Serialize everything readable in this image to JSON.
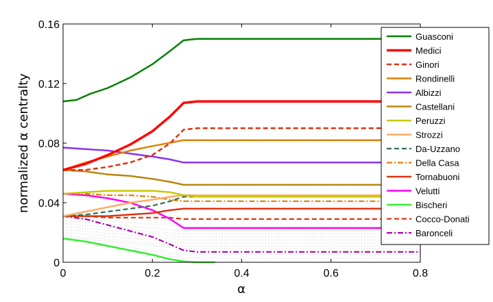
{
  "chart_data": {
    "type": "line",
    "xlabel": "α",
    "ylabel": "normalized α centralty",
    "xlim": [
      0,
      0.8
    ],
    "ylim": [
      0,
      0.16
    ],
    "x_ticks": [
      "0",
      "0.2",
      "0.4",
      "0.6",
      "0.8"
    ],
    "y_ticks": [
      "0",
      "0.04",
      "0.08",
      "0.12",
      "0.16"
    ],
    "legend_position": "top-right",
    "grid": false,
    "series": [
      {
        "name": "Guasconi",
        "color": "#008000",
        "dash": "solid",
        "width": 2.5,
        "points": [
          [
            0,
            0.108
          ],
          [
            0.03,
            0.109
          ],
          [
            0.06,
            0.113
          ],
          [
            0.1,
            0.117
          ],
          [
            0.15,
            0.124
          ],
          [
            0.2,
            0.133
          ],
          [
            0.24,
            0.142
          ],
          [
            0.27,
            0.149
          ],
          [
            0.3,
            0.15
          ],
          [
            0.8,
            0.15
          ]
        ]
      },
      {
        "name": "Medici",
        "color": "#ff0000",
        "dash": "solid",
        "width": 3.5,
        "points": [
          [
            0,
            0.062
          ],
          [
            0.05,
            0.066
          ],
          [
            0.1,
            0.072
          ],
          [
            0.15,
            0.079
          ],
          [
            0.2,
            0.088
          ],
          [
            0.24,
            0.098
          ],
          [
            0.27,
            0.107
          ],
          [
            0.3,
            0.108
          ],
          [
            0.8,
            0.108
          ]
        ]
      },
      {
        "name": "Ginori",
        "color": "#dd3311",
        "dash": "dashed",
        "width": 2.5,
        "points": [
          [
            0,
            0.062
          ],
          [
            0.05,
            0.062
          ],
          [
            0.1,
            0.064
          ],
          [
            0.15,
            0.067
          ],
          [
            0.2,
            0.072
          ],
          [
            0.24,
            0.08
          ],
          [
            0.27,
            0.089
          ],
          [
            0.3,
            0.09
          ],
          [
            0.8,
            0.09
          ]
        ]
      },
      {
        "name": "Rondinelli",
        "color": "#e08000",
        "dash": "solid",
        "width": 2.5,
        "points": [
          [
            0,
            0.062
          ],
          [
            0.05,
            0.067
          ],
          [
            0.1,
            0.071
          ],
          [
            0.15,
            0.075
          ],
          [
            0.2,
            0.078
          ],
          [
            0.27,
            0.082
          ],
          [
            0.8,
            0.082
          ]
        ]
      },
      {
        "name": "Albizzi",
        "color": "#8833ee",
        "dash": "solid",
        "width": 2.5,
        "points": [
          [
            0,
            0.077
          ],
          [
            0.05,
            0.076
          ],
          [
            0.1,
            0.075
          ],
          [
            0.15,
            0.073
          ],
          [
            0.2,
            0.071
          ],
          [
            0.24,
            0.069
          ],
          [
            0.27,
            0.067
          ],
          [
            0.8,
            0.067
          ]
        ]
      },
      {
        "name": "Castellani",
        "color": "#b8860b",
        "dash": "solid",
        "width": 2.5,
        "points": [
          [
            0,
            0.062
          ],
          [
            0.05,
            0.061
          ],
          [
            0.1,
            0.059
          ],
          [
            0.15,
            0.058
          ],
          [
            0.2,
            0.056
          ],
          [
            0.24,
            0.054
          ],
          [
            0.27,
            0.052
          ],
          [
            0.8,
            0.052
          ]
        ]
      },
      {
        "name": "Peruzzi",
        "color": "#c8c800",
        "dash": "solid",
        "width": 2.5,
        "points": [
          [
            0,
            0.046
          ],
          [
            0.05,
            0.047
          ],
          [
            0.1,
            0.048
          ],
          [
            0.15,
            0.048
          ],
          [
            0.2,
            0.048
          ],
          [
            0.24,
            0.047
          ],
          [
            0.27,
            0.045
          ],
          [
            0.3,
            0.044
          ],
          [
            0.8,
            0.044
          ]
        ]
      },
      {
        "name": "Strozzi",
        "color": "#ffaa66",
        "dash": "solid",
        "width": 2.5,
        "points": [
          [
            0,
            0.031
          ],
          [
            0.05,
            0.034
          ],
          [
            0.1,
            0.037
          ],
          [
            0.15,
            0.04
          ],
          [
            0.2,
            0.042
          ],
          [
            0.24,
            0.044
          ],
          [
            0.27,
            0.045
          ],
          [
            0.8,
            0.045
          ]
        ]
      },
      {
        "name": "Da-Uzzano",
        "color": "#2f6f4f",
        "dash": "dashed",
        "width": 2.2,
        "points": [
          [
            0,
            0.031
          ],
          [
            0.05,
            0.032
          ],
          [
            0.1,
            0.034
          ],
          [
            0.15,
            0.036
          ],
          [
            0.2,
            0.038
          ],
          [
            0.24,
            0.041
          ],
          [
            0.27,
            0.044
          ],
          [
            0.8,
            0.044
          ]
        ]
      },
      {
        "name": "Della Casa",
        "color": "#e08000",
        "dash": "dashdot",
        "width": 2.2,
        "points": [
          [
            0,
            0.046
          ],
          [
            0.05,
            0.046
          ],
          [
            0.1,
            0.045
          ],
          [
            0.15,
            0.045
          ],
          [
            0.2,
            0.044
          ],
          [
            0.24,
            0.042
          ],
          [
            0.27,
            0.041
          ],
          [
            0.8,
            0.041
          ]
        ]
      },
      {
        "name": "Tornabuoni",
        "color": "#dd3311",
        "dash": "solid",
        "width": 2.5,
        "points": [
          [
            0,
            0.031
          ],
          [
            0.05,
            0.031
          ],
          [
            0.1,
            0.031
          ],
          [
            0.15,
            0.032
          ],
          [
            0.2,
            0.033
          ],
          [
            0.24,
            0.035
          ],
          [
            0.27,
            0.036
          ],
          [
            0.8,
            0.036
          ]
        ]
      },
      {
        "name": "Velutti",
        "color": "#ff00ff",
        "dash": "solid",
        "width": 2.5,
        "points": [
          [
            0,
            0.046
          ],
          [
            0.05,
            0.045
          ],
          [
            0.1,
            0.043
          ],
          [
            0.15,
            0.04
          ],
          [
            0.2,
            0.035
          ],
          [
            0.24,
            0.029
          ],
          [
            0.27,
            0.023
          ],
          [
            0.8,
            0.023
          ]
        ]
      },
      {
        "name": "Bischeri",
        "color": "#33ee33",
        "dash": "solid",
        "width": 2.5,
        "points": [
          [
            0,
            0.016
          ],
          [
            0.05,
            0.014
          ],
          [
            0.1,
            0.011
          ],
          [
            0.15,
            0.008
          ],
          [
            0.2,
            0.005
          ],
          [
            0.24,
            0.002
          ],
          [
            0.27,
            0.0005
          ],
          [
            0.3,
            0.0
          ],
          [
            0.34,
            0.0
          ]
        ]
      },
      {
        "name": "Cocco-Donati",
        "color": "#dd3311",
        "dash": "dashed",
        "width": 2.2,
        "points": [
          [
            0,
            0.031
          ],
          [
            0.05,
            0.031
          ],
          [
            0.1,
            0.03
          ],
          [
            0.15,
            0.03
          ],
          [
            0.2,
            0.03
          ],
          [
            0.24,
            0.03
          ],
          [
            0.27,
            0.029
          ],
          [
            0.8,
            0.029
          ]
        ]
      },
      {
        "name": "Baronceli",
        "color": "#aa00aa",
        "dash": "dashdot",
        "width": 2.2,
        "points": [
          [
            0,
            0.031
          ],
          [
            0.05,
            0.029
          ],
          [
            0.1,
            0.025
          ],
          [
            0.15,
            0.021
          ],
          [
            0.2,
            0.017
          ],
          [
            0.24,
            0.012
          ],
          [
            0.27,
            0.008
          ],
          [
            0.3,
            0.007
          ],
          [
            0.8,
            0.007
          ]
        ]
      }
    ],
    "background_series": {
      "color": "#c8c8c8",
      "dash": "dotted",
      "width": 1,
      "lines": [
        {
          "start": 0.03,
          "end": 0.024
        },
        {
          "start": 0.028,
          "end": 0.021
        },
        {
          "start": 0.026,
          "end": 0.019
        },
        {
          "start": 0.024,
          "end": 0.017
        },
        {
          "start": 0.022,
          "end": 0.015
        },
        {
          "start": 0.02,
          "end": 0.013
        },
        {
          "start": 0.018,
          "end": 0.011
        },
        {
          "start": 0.017,
          "end": 0.009
        },
        {
          "start": 0.016,
          "end": 0.005
        },
        {
          "start": 0.015,
          "end": 0.003
        }
      ]
    }
  }
}
